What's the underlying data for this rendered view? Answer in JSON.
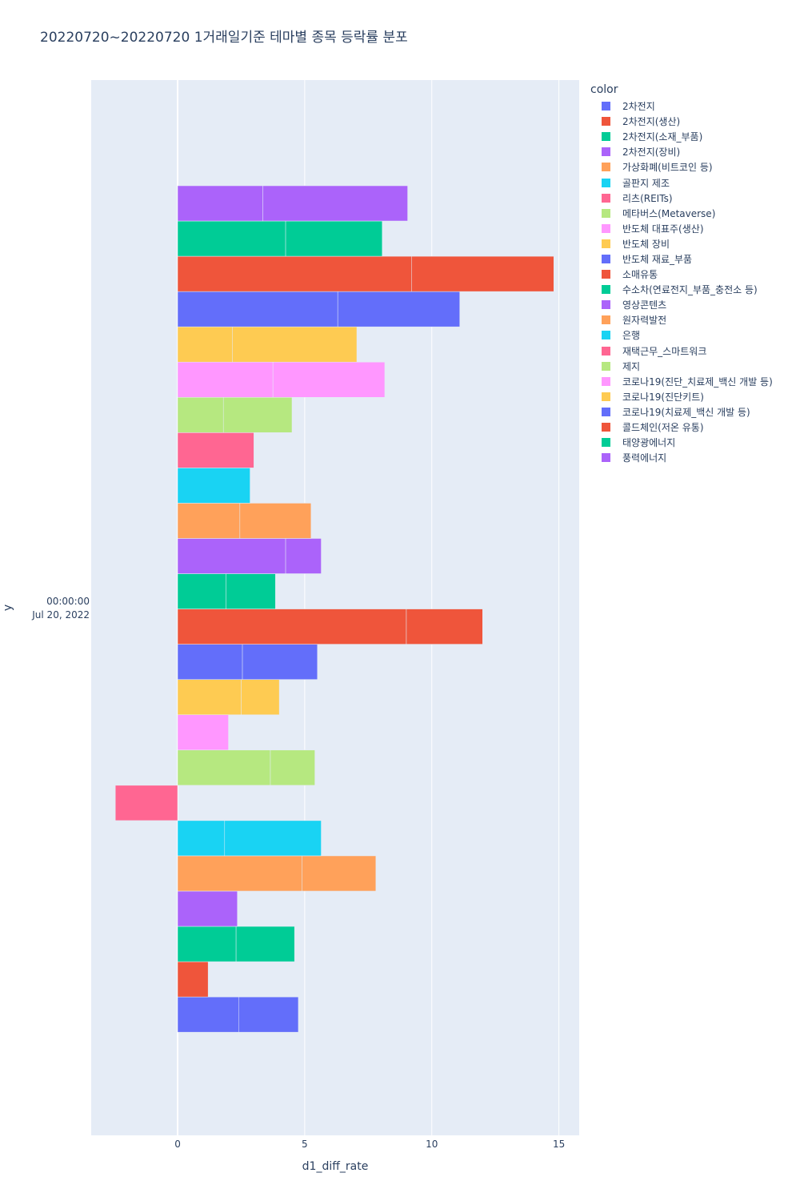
{
  "chart_data": {
    "type": "bar",
    "orientation": "horizontal",
    "barmode": "stack",
    "title": "20220720~20220720 1거래일기준 테마별 종목 등락률 분포",
    "xlabel": "d1_diff_rate",
    "ylabel": "y",
    "y_tick_label_time": "00:00:00",
    "y_tick_label_date": "Jul 20, 2022",
    "xlim": [
      -3.4,
      15.8
    ],
    "x_ticks": [
      0,
      5,
      10,
      15
    ],
    "grid": true,
    "legend_title": "color",
    "legend_position": "right",
    "series": [
      {
        "name": "2차전지",
        "color": "#636efa",
        "segments": [
          2.4,
          2.35
        ]
      },
      {
        "name": "2차전지(생산)",
        "color": "#EF553B",
        "segments": [
          1.2
        ]
      },
      {
        "name": "2차전지(소재_부품)",
        "color": "#00cc96",
        "segments": [
          2.3,
          2.3
        ]
      },
      {
        "name": "2차전지(장비)",
        "color": "#ab63fa",
        "segments": [
          2.35
        ]
      },
      {
        "name": "가상화폐(비트코인 등)",
        "color": "#FFA15A",
        "segments": [
          4.9,
          2.9
        ]
      },
      {
        "name": "골판지 제조",
        "color": "#19d3f3",
        "segments": [
          1.85,
          3.8
        ]
      },
      {
        "name": "리츠(REITs)",
        "color": "#FF6692",
        "segments": [
          -2.45
        ]
      },
      {
        "name": "메타버스(Metaverse)",
        "color": "#B6E880",
        "segments": [
          3.65,
          1.75
        ]
      },
      {
        "name": "반도체 대표주(생산)",
        "color": "#FF97FF",
        "segments": [
          2.0
        ]
      },
      {
        "name": "반도체 장비",
        "color": "#FECB52",
        "segments": [
          2.5,
          1.5
        ]
      },
      {
        "name": "반도체 재료_부품",
        "color": "#636efa",
        "segments": [
          2.55,
          2.95
        ]
      },
      {
        "name": "소매유통",
        "color": "#EF553B",
        "segments": [
          9.0,
          3.0
        ]
      },
      {
        "name": "수소차(연료전지_부품_충전소 등)",
        "color": "#00cc96",
        "segments": [
          1.9,
          1.95
        ]
      },
      {
        "name": "영상콘텐츠",
        "color": "#ab63fa",
        "segments": [
          4.25,
          1.4
        ]
      },
      {
        "name": "원자력발전",
        "color": "#FFA15A",
        "segments": [
          2.45,
          2.8
        ]
      },
      {
        "name": "은행",
        "color": "#19d3f3",
        "segments": [
          2.85
        ]
      },
      {
        "name": "재택근무_스마트워크",
        "color": "#FF6692",
        "segments": [
          3.0
        ]
      },
      {
        "name": "제지",
        "color": "#B6E880",
        "segments": [
          1.8,
          2.7
        ]
      },
      {
        "name": "코로나19(진단_치료제_백신 개발 등)",
        "color": "#FF97FF",
        "segments": [
          3.75,
          4.4
        ]
      },
      {
        "name": "코로나19(진단키트)",
        "color": "#FECB52",
        "segments": [
          2.15,
          4.9
        ]
      },
      {
        "name": "코로나19(치료제_백신 개발 등)",
        "color": "#636efa",
        "segments": [
          6.3,
          4.8
        ]
      },
      {
        "name": "콜드체인(저온 유통)",
        "color": "#EF553B",
        "segments": [
          9.2,
          5.6
        ]
      },
      {
        "name": "태양광에너지",
        "color": "#00cc96",
        "segments": [
          4.25,
          3.8
        ]
      },
      {
        "name": "풍력에너지",
        "color": "#ab63fa",
        "segments": [
          3.35,
          5.7
        ]
      }
    ]
  }
}
